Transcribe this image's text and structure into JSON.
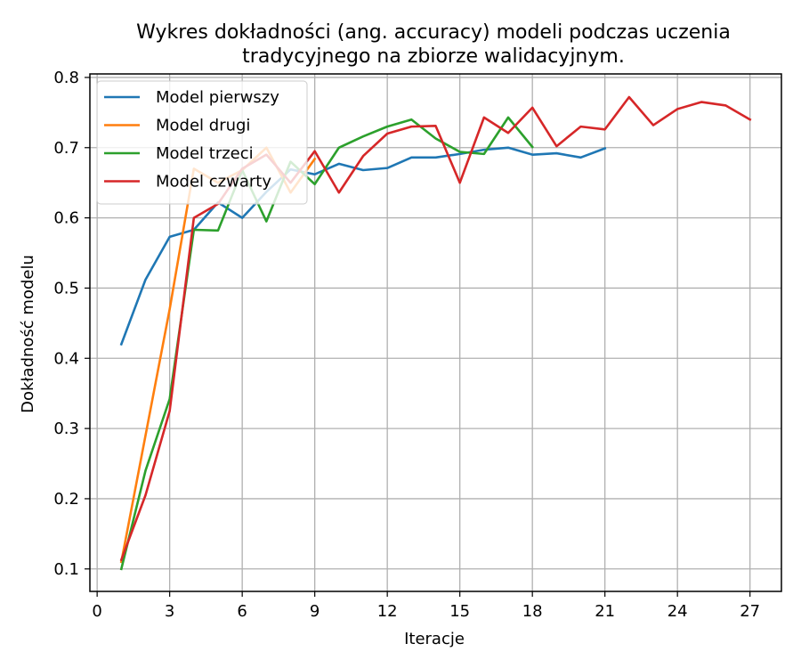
{
  "chart_data": {
    "type": "line",
    "title": "Wykres dokładności (ang. accuracy) modeli podczas uczenia\ntradycyjnego na zbiorze walidacyjnym.",
    "xlabel": "Iteracje",
    "ylabel": "Dokładność modelu",
    "xlim": [
      -0.3,
      28.3
    ],
    "ylim": [
      0.068,
      0.805
    ],
    "xticks": [
      0,
      3,
      6,
      9,
      12,
      15,
      18,
      21,
      24,
      27
    ],
    "yticks": [
      0.1,
      0.2,
      0.3,
      0.4,
      0.5,
      0.6,
      0.7,
      0.8
    ],
    "grid": true,
    "legend_position": "upper left",
    "series": [
      {
        "name": "Model pierwszy",
        "color": "#1f77b4",
        "x": [
          1,
          2,
          3,
          4,
          5,
          6,
          7,
          8,
          9,
          10,
          11,
          12,
          13,
          14,
          15,
          16,
          17,
          18,
          19,
          20,
          21
        ],
        "values": [
          0.42,
          0.512,
          0.573,
          0.583,
          0.622,
          0.6,
          0.637,
          0.669,
          0.662,
          0.677,
          0.668,
          0.671,
          0.686,
          0.686,
          0.691,
          0.697,
          0.7,
          0.69,
          0.692,
          0.686,
          0.699
        ]
      },
      {
        "name": "Model drugi",
        "color": "#ff7f0e",
        "x": [
          1,
          2,
          3,
          4,
          5,
          6,
          7,
          8,
          9
        ],
        "values": [
          0.11,
          0.29,
          0.47,
          0.67,
          0.65,
          0.668,
          0.7,
          0.636,
          0.684
        ]
      },
      {
        "name": "Model trzeci",
        "color": "#2ca02c",
        "x": [
          1,
          2,
          3,
          4,
          5,
          6,
          7,
          8,
          9,
          10,
          11,
          12,
          13,
          14,
          15,
          16,
          17,
          18
        ],
        "values": [
          0.1,
          0.24,
          0.342,
          0.583,
          0.582,
          0.668,
          0.595,
          0.68,
          0.648,
          0.7,
          0.716,
          0.73,
          0.74,
          0.713,
          0.694,
          0.691,
          0.743,
          0.701
        ]
      },
      {
        "name": "Model czwarty",
        "color": "#d62728",
        "x": [
          1,
          2,
          3,
          4,
          5,
          6,
          7,
          8,
          9,
          10,
          11,
          12,
          13,
          14,
          15,
          16,
          17,
          18,
          19,
          20,
          21,
          22,
          23,
          24,
          25,
          26,
          27
        ],
        "values": [
          0.113,
          0.205,
          0.325,
          0.6,
          0.62,
          0.67,
          0.69,
          0.65,
          0.695,
          0.636,
          0.688,
          0.72,
          0.73,
          0.731,
          0.65,
          0.743,
          0.721,
          0.757,
          0.702,
          0.73,
          0.726,
          0.772,
          0.732,
          0.755,
          0.765,
          0.76,
          0.74
        ]
      }
    ]
  }
}
